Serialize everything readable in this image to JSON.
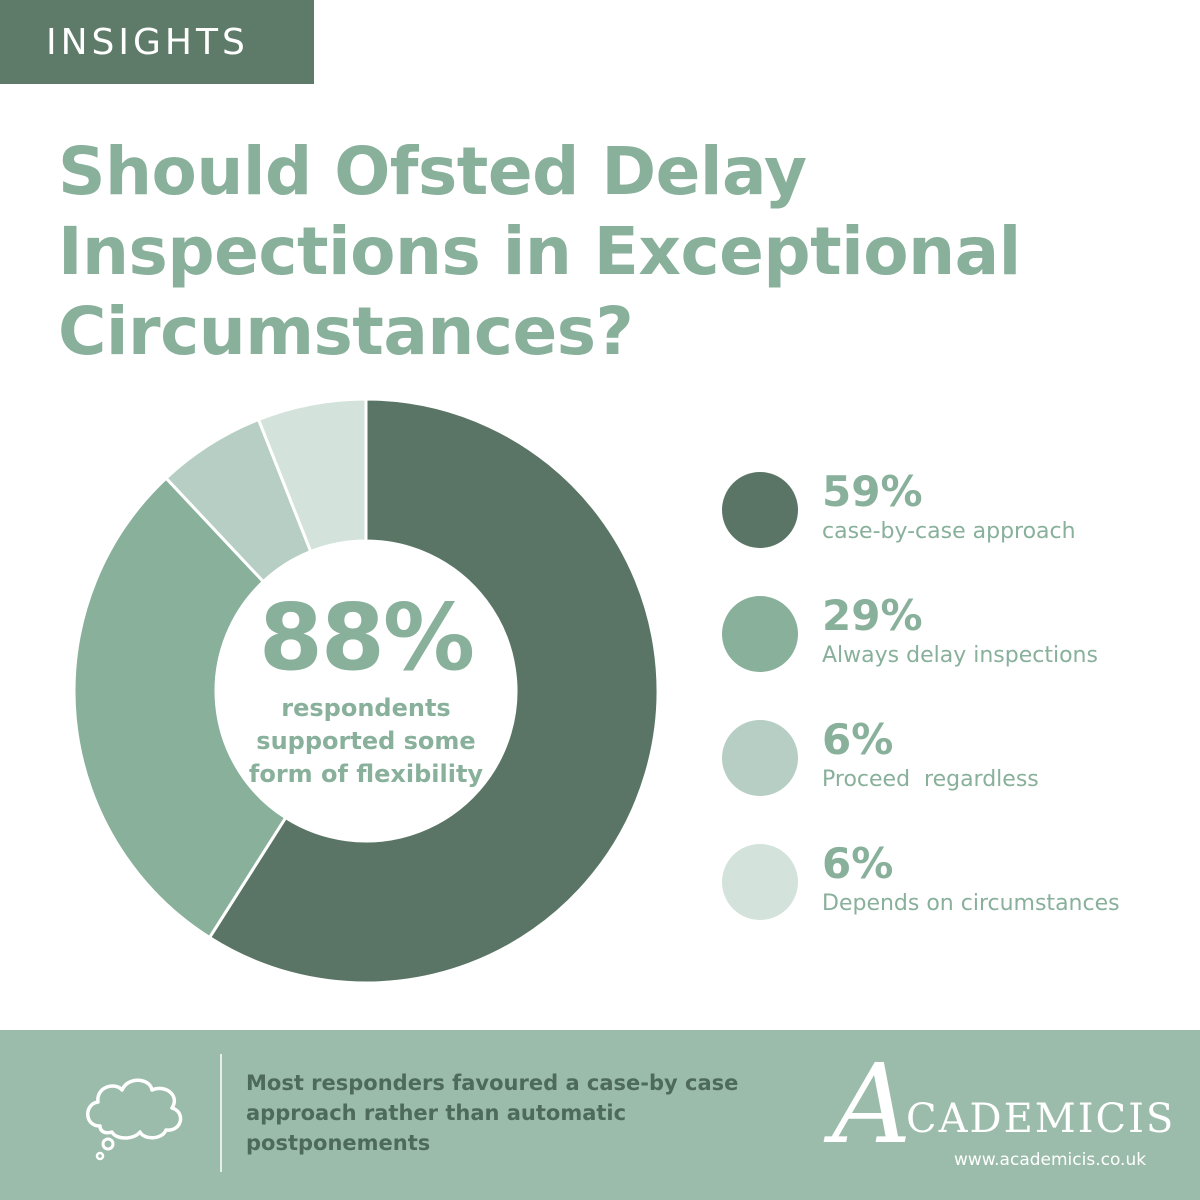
{
  "header": {
    "tag": "INSIGHTS"
  },
  "title_lines": [
    "Should Ofsted Delay",
    "Inspections in Exceptional",
    "Circumstances?"
  ],
  "center": {
    "value": "88%",
    "caption_lines": [
      "respondents",
      "supported some",
      "form of flexibility"
    ]
  },
  "chart_data": {
    "type": "pie",
    "labels": [
      "case-by-case approach",
      "Always delay inspections",
      "Proceed  regardless",
      "Depends on circumstances"
    ],
    "values": [
      59,
      29,
      6,
      6
    ],
    "value_labels": [
      "59%",
      "29%",
      "6%",
      "6%"
    ],
    "colors": [
      "#5a7565",
      "#88b09b",
      "#b6cec3",
      "#d3e3dc"
    ],
    "donut": true
  },
  "footer": {
    "note": "Most responders favoured a case-by case approach rather than automatic postponements",
    "brand_initial": "A",
    "brand_name": "CADEMICIS",
    "url": "www.academicis.co.uk",
    "icon": "thought-bubble-icon"
  }
}
